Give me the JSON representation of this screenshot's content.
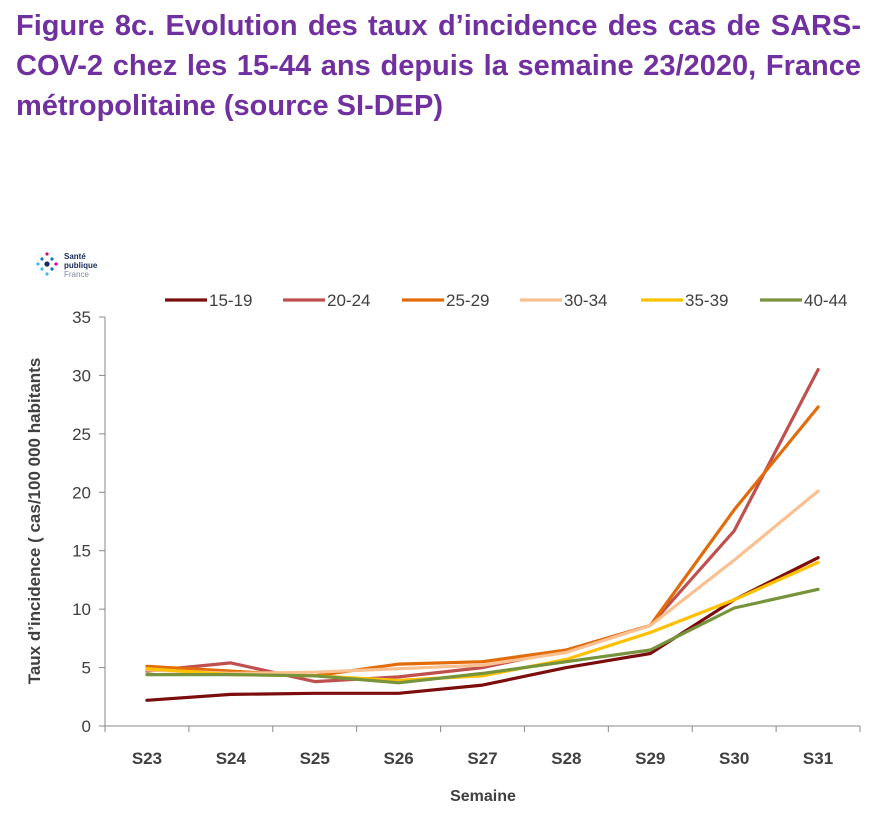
{
  "title": "Figure 8c. Evolution des taux d’incidence des cas de SARS-COV-2 chez les 15-44 ans depuis la semaine 23/2020, France métropolitaine (source SI-DEP)",
  "logo": {
    "line1": "Santé",
    "line2": "publique",
    "line3": "France"
  },
  "chart_data": {
    "type": "line",
    "xlabel": "Semaine",
    "ylabel": "Taux d’incidence ( cas/100 000 habitants",
    "categories": [
      "S23",
      "S24",
      "S25",
      "S26",
      "S27",
      "S28",
      "S29",
      "S30",
      "S31"
    ],
    "ylim": [
      0,
      35
    ],
    "yticks": [
      0,
      5,
      10,
      15,
      20,
      25,
      30,
      35
    ],
    "legend_position": "top",
    "grid": false,
    "series": [
      {
        "name": "15-19",
        "color": "#7b0d0d",
        "values": [
          2.2,
          2.7,
          2.8,
          2.8,
          3.5,
          5.0,
          6.2,
          10.8,
          14.4
        ]
      },
      {
        "name": "20-24",
        "color": "#c0504d",
        "values": [
          4.7,
          5.4,
          3.8,
          4.2,
          5.0,
          6.5,
          8.6,
          16.7,
          30.5
        ]
      },
      {
        "name": "25-29",
        "color": "#e36c0a",
        "values": [
          5.1,
          4.7,
          4.3,
          5.3,
          5.5,
          6.5,
          8.6,
          18.5,
          27.3
        ]
      },
      {
        "name": "30-34",
        "color": "#fac090",
        "values": [
          4.8,
          4.5,
          4.6,
          4.9,
          5.2,
          6.3,
          8.6,
          14.2,
          20.1
        ]
      },
      {
        "name": "35-39",
        "color": "#ffc000",
        "values": [
          4.9,
          4.4,
          4.3,
          3.9,
          4.3,
          5.7,
          8.0,
          10.8,
          14.0
        ]
      },
      {
        "name": "40-44",
        "color": "#77933c",
        "values": [
          4.4,
          4.4,
          4.3,
          3.7,
          4.5,
          5.5,
          6.5,
          10.1,
          11.7
        ]
      }
    ]
  }
}
